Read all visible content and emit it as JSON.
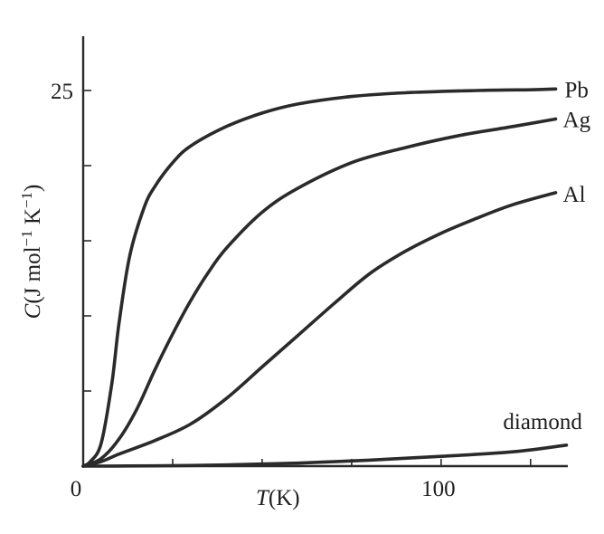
{
  "chart_data": {
    "type": "line",
    "title": "",
    "xlabel_var": "T",
    "xlabel_unit": "(K)",
    "ylabel_var": "C",
    "ylabel_unit": "(J mol",
    "ylabel_exp1": "−1",
    "ylabel_unit2": " K",
    "ylabel_exp2": "−1",
    "ylabel_close": ")",
    "xlim": [
      0,
      135
    ],
    "ylim": [
      0,
      25
    ],
    "x_ticks": [
      0,
      25,
      50,
      75,
      100,
      125
    ],
    "x_tick_labels": [
      {
        "value": 0,
        "label": "0"
      },
      {
        "value": 100,
        "label": "100"
      }
    ],
    "y_ticks": [
      5,
      10,
      15,
      20,
      25
    ],
    "y_tick_labels": [
      {
        "value": 25,
        "label": "25"
      }
    ],
    "series": [
      {
        "name": "Pb",
        "points": [
          [
            0,
            0
          ],
          [
            2,
            0.3
          ],
          [
            5,
            1.5
          ],
          [
            8,
            5.5
          ],
          [
            10,
            9.5
          ],
          [
            13,
            14.0
          ],
          [
            17,
            17.2
          ],
          [
            20,
            18.6
          ],
          [
            25,
            20.2
          ],
          [
            30,
            21.3
          ],
          [
            40,
            22.6
          ],
          [
            50,
            23.5
          ],
          [
            60,
            24.1
          ],
          [
            75,
            24.6
          ],
          [
            90,
            24.85
          ],
          [
            110,
            25.0
          ],
          [
            125,
            25.05
          ],
          [
            132,
            25.1
          ]
        ]
      },
      {
        "name": "Ag",
        "points": [
          [
            0,
            0
          ],
          [
            5,
            0.5
          ],
          [
            10,
            1.8
          ],
          [
            15,
            3.8
          ],
          [
            20,
            6.4
          ],
          [
            25,
            8.8
          ],
          [
            30,
            11.0
          ],
          [
            35,
            12.9
          ],
          [
            40,
            14.5
          ],
          [
            50,
            16.9
          ],
          [
            60,
            18.5
          ],
          [
            75,
            20.2
          ],
          [
            90,
            21.2
          ],
          [
            105,
            22.0
          ],
          [
            120,
            22.6
          ],
          [
            132,
            23.1
          ]
        ]
      },
      {
        "name": "Al",
        "points": [
          [
            0,
            0
          ],
          [
            5,
            0.3
          ],
          [
            10,
            0.8
          ],
          [
            20,
            1.7
          ],
          [
            30,
            2.8
          ],
          [
            40,
            4.5
          ],
          [
            50,
            6.6
          ],
          [
            60,
            8.7
          ],
          [
            70,
            10.8
          ],
          [
            80,
            12.8
          ],
          [
            90,
            14.3
          ],
          [
            100,
            15.5
          ],
          [
            110,
            16.5
          ],
          [
            120,
            17.4
          ],
          [
            132,
            18.2
          ]
        ]
      },
      {
        "name": "diamond",
        "points": [
          [
            0,
            0
          ],
          [
            20,
            0.02
          ],
          [
            40,
            0.08
          ],
          [
            60,
            0.2
          ],
          [
            80,
            0.4
          ],
          [
            100,
            0.65
          ],
          [
            120,
            0.95
          ],
          [
            135,
            1.4
          ]
        ]
      }
    ],
    "grid": false,
    "legend": "labels at line ends"
  }
}
